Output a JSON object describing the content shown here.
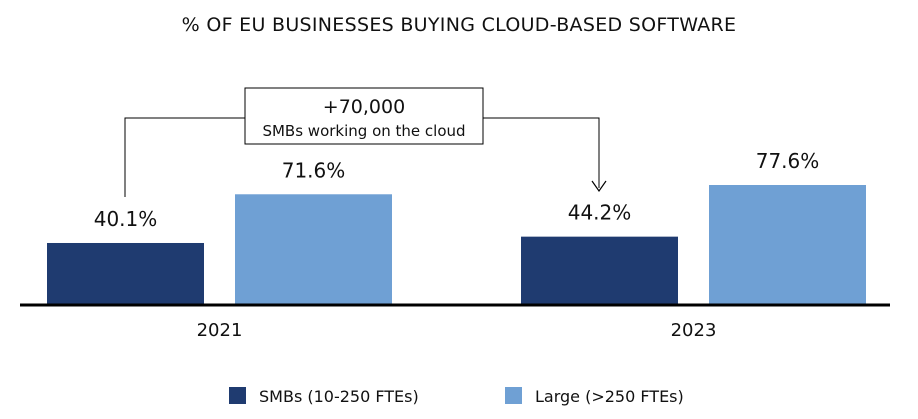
{
  "chart_data": {
    "type": "bar",
    "title": "% OF EU BUSINESSES BUYING CLOUD-BASED SOFTWARE",
    "categories": [
      "2021",
      "2023"
    ],
    "series": [
      {
        "name": "SMBs (10-250 FTEs)",
        "color": "#1f3b70",
        "values": [
          40.1,
          44.2
        ],
        "labels": [
          "40.1%",
          "44.2%"
        ]
      },
      {
        "name": "Large (>250 FTEs)",
        "color": "#6fa0d4",
        "values": [
          71.6,
          77.6
        ],
        "labels": [
          "71.6%",
          "77.6%"
        ]
      }
    ],
    "ylim": [
      0,
      100
    ],
    "xlabel": "",
    "ylabel": "",
    "grid": false,
    "legend": "bottom",
    "annotation": {
      "value": "+70,000",
      "text": "SMBs working on the cloud",
      "from": "2021 SMBs",
      "to": "2023 SMBs"
    }
  }
}
